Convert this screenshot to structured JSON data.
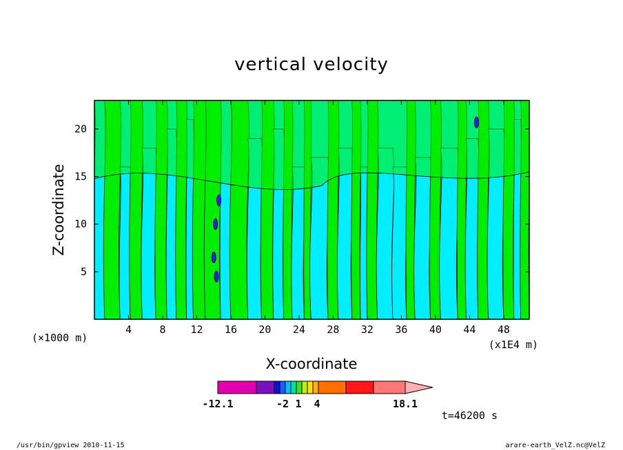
{
  "chart_data": {
    "type": "heatmap",
    "title": "vertical velocity",
    "xlabel": "X-coordinate",
    "ylabel": "Z-coordinate",
    "x_unit_left": "(×1000 m)",
    "x_unit_right": "(x1E4 m)",
    "xlim": [
      0,
      51
    ],
    "ylim": [
      0,
      23
    ],
    "x_ticks": [
      4,
      8,
      12,
      16,
      20,
      24,
      28,
      32,
      36,
      40,
      44,
      48
    ],
    "y_ticks": [
      5,
      10,
      15,
      20
    ],
    "colorbar": {
      "min_label": "-12.1",
      "max_label": "18.1",
      "tick_labels": [
        "-2",
        "1",
        "4"
      ],
      "tick_values": [
        -2,
        1,
        4
      ],
      "colors": [
        "#e000b0",
        "#7a10c0",
        "#1010d0",
        "#1060ff",
        "#00c0ff",
        "#00e0a0",
        "#40e020",
        "#c0f000",
        "#ffe000",
        "#ffb000",
        "#ff7000",
        "#ff1818",
        "#ff7878",
        "#ffb0b0"
      ]
    },
    "field_colors": {
      "cyan": "#00eeff",
      "green": "#00ee00",
      "contour": "#000000",
      "negative": "#2020ff"
    },
    "columns": [
      {
        "x": 0.0,
        "c": "cyan",
        "z0": 0,
        "z1": 23
      },
      {
        "x": 1.2,
        "c": "green",
        "z0": 0,
        "z1": 23
      },
      {
        "x": 3.0,
        "c": "cyan",
        "z0": 0,
        "z1": 16
      },
      {
        "x": 4.2,
        "c": "green",
        "z0": 0,
        "z1": 23
      },
      {
        "x": 5.6,
        "c": "cyan",
        "z0": 0,
        "z1": 18
      },
      {
        "x": 7.2,
        "c": "green",
        "z0": 0,
        "z1": 23
      },
      {
        "x": 8.5,
        "c": "cyan",
        "z0": 0,
        "z1": 20
      },
      {
        "x": 9.6,
        "c": "green",
        "z0": 0,
        "z1": 23
      },
      {
        "x": 10.8,
        "c": "cyan",
        "z0": 0,
        "z1": 21
      },
      {
        "x": 11.6,
        "c": "green",
        "z0": 0,
        "z1": 23
      },
      {
        "x": 13.0,
        "c": "green",
        "z0": 0,
        "z1": 23
      },
      {
        "x": 14.8,
        "c": "cyan",
        "z0": 0,
        "z1": 23
      },
      {
        "x": 16.0,
        "c": "green",
        "z0": 0,
        "z1": 23
      },
      {
        "x": 18.0,
        "c": "cyan",
        "z0": 0,
        "z1": 19
      },
      {
        "x": 19.6,
        "c": "green",
        "z0": 0,
        "z1": 23
      },
      {
        "x": 21.0,
        "c": "cyan",
        "z0": 0,
        "z1": 20
      },
      {
        "x": 22.2,
        "c": "green",
        "z0": 0,
        "z1": 23
      },
      {
        "x": 23.2,
        "c": "cyan",
        "z0": 0,
        "z1": 16
      },
      {
        "x": 24.6,
        "c": "green",
        "z0": 0,
        "z1": 23
      },
      {
        "x": 25.4,
        "c": "cyan",
        "z0": 0,
        "z1": 17
      },
      {
        "x": 27.4,
        "c": "green",
        "z0": 0,
        "z1": 23
      },
      {
        "x": 28.6,
        "c": "cyan",
        "z0": 0,
        "z1": 18
      },
      {
        "x": 30.2,
        "c": "green",
        "z0": 0,
        "z1": 23
      },
      {
        "x": 31.2,
        "c": "cyan",
        "z0": 0,
        "z1": 16
      },
      {
        "x": 32.0,
        "c": "green",
        "z0": 0,
        "z1": 23
      },
      {
        "x": 33.2,
        "c": "cyan",
        "z0": 0,
        "z1": 18
      },
      {
        "x": 35.0,
        "c": "cyan",
        "z0": 0,
        "z1": 16
      },
      {
        "x": 36.6,
        "c": "green",
        "z0": 0,
        "z1": 23
      },
      {
        "x": 37.6,
        "c": "cyan",
        "z0": 0,
        "z1": 17
      },
      {
        "x": 39.4,
        "c": "green",
        "z0": 0,
        "z1": 23
      },
      {
        "x": 40.6,
        "c": "cyan",
        "z0": 0,
        "z1": 18
      },
      {
        "x": 42.6,
        "c": "green",
        "z0": 0,
        "z1": 23
      },
      {
        "x": 43.6,
        "c": "cyan",
        "z0": 0,
        "z1": 19
      },
      {
        "x": 45.0,
        "c": "green",
        "z0": 0,
        "z1": 23
      },
      {
        "x": 46.2,
        "c": "cyan",
        "z0": 0,
        "z1": 20
      },
      {
        "x": 48.0,
        "c": "green",
        "z0": 0,
        "z1": 23
      },
      {
        "x": 49.2,
        "c": "cyan",
        "z0": 0,
        "z1": 21
      },
      {
        "x": 50.0,
        "c": "green",
        "z0": 0,
        "z1": 23
      }
    ],
    "top_band_z": 15.5,
    "negative_spots": [
      {
        "x": 14.2,
        "z": 10.0
      },
      {
        "x": 14.0,
        "z": 6.5
      },
      {
        "x": 14.6,
        "z": 12.5
      },
      {
        "x": 14.3,
        "z": 4.5
      },
      {
        "x": 44.8,
        "z": 20.7
      }
    ]
  },
  "time_label": "t=46200 s",
  "footer_left": "/usr/bin/gpview   2010-11-15",
  "footer_right": "arare-earth_VelZ.nc@VelZ"
}
